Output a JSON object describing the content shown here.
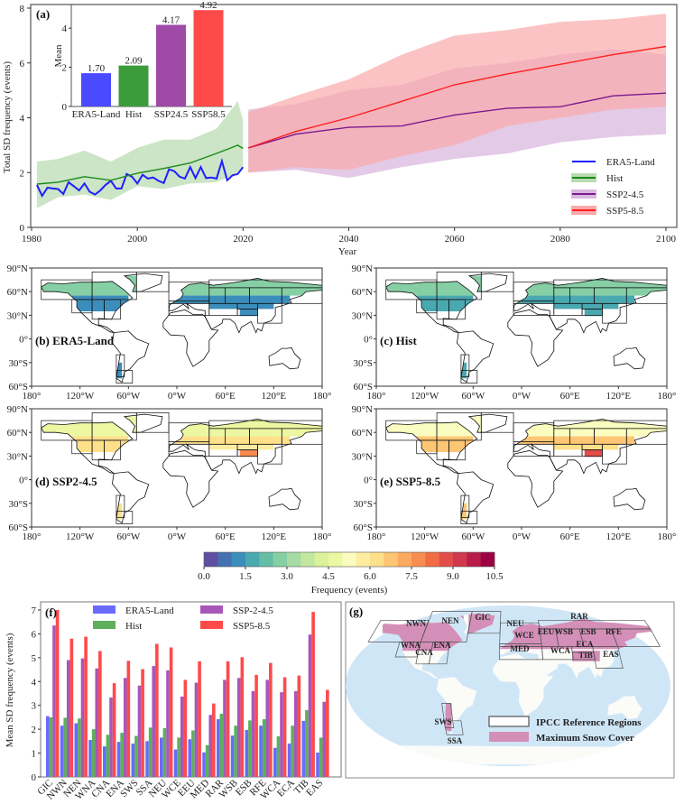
{
  "chart_data": [
    {
      "panel": "(a)",
      "type": "line",
      "xlabel": "Year",
      "ylabel": "Total SD frequency (events)",
      "xlim": [
        1980,
        2100
      ],
      "ylim": [
        0,
        8
      ],
      "xticks": [
        1980,
        2000,
        2020,
        2040,
        2060,
        2080,
        2100
      ],
      "yticks": [
        0,
        2,
        4,
        6,
        8
      ],
      "grid": false,
      "legend_position": "lower-right",
      "series": [
        {
          "name": "ERA5-Land",
          "color": "#1f1fff",
          "x": [
            1981,
            1982,
            1983,
            1984,
            1985,
            1986,
            1987,
            1988,
            1989,
            1990,
            1991,
            1992,
            1993,
            1994,
            1995,
            1996,
            1997,
            1998,
            1999,
            2000,
            2001,
            2002,
            2003,
            2004,
            2005,
            2006,
            2007,
            2008,
            2009,
            2010,
            2011,
            2012,
            2013,
            2014,
            2015,
            2016,
            2017,
            2018,
            2019,
            2020
          ],
          "y": [
            1.55,
            1.15,
            1.45,
            1.42,
            1.4,
            1.22,
            1.65,
            1.5,
            1.35,
            1.6,
            1.3,
            1.2,
            1.35,
            1.55,
            1.7,
            1.42,
            1.42,
            1.95,
            1.85,
            1.6,
            1.92,
            1.78,
            1.82,
            1.7,
            1.62,
            2.12,
            2.05,
            1.85,
            1.78,
            2.2,
            1.8,
            2.2,
            1.8,
            1.82,
            1.78,
            2.42,
            1.72,
            1.9,
            1.95,
            2.2
          ]
        },
        {
          "name": "Hist",
          "color": "#1a8a1a",
          "band_color": "#b9dcb3",
          "x": [
            1981,
            1985,
            1990,
            1995,
            2000,
            2005,
            2010,
            2015,
            2019,
            2020
          ],
          "y": [
            1.58,
            1.65,
            1.85,
            1.72,
            1.98,
            2.15,
            2.35,
            2.7,
            3.0,
            2.88
          ],
          "lower": [
            0.7,
            1.1,
            1.2,
            1.0,
            1.5,
            1.4,
            1.6,
            1.65,
            2.0,
            2.1
          ],
          "upper": [
            2.4,
            2.5,
            2.8,
            2.4,
            2.9,
            3.2,
            3.2,
            3.6,
            4.6,
            3.9
          ]
        },
        {
          "name": "SSP2-4.5",
          "color": "#7b1a8e",
          "band_color": "#d9b8dd",
          "x": [
            2021,
            2030,
            2040,
            2050,
            2060,
            2070,
            2080,
            2090,
            2100
          ],
          "y": [
            2.9,
            3.4,
            3.65,
            3.7,
            4.1,
            4.35,
            4.4,
            4.8,
            4.9
          ],
          "lower": [
            2.0,
            2.1,
            1.8,
            2.2,
            2.5,
            2.7,
            3.1,
            3.3,
            3.4
          ],
          "upper": [
            4.3,
            4.5,
            5.0,
            5.2,
            5.8,
            6.0,
            6.3,
            6.5,
            6.3
          ]
        },
        {
          "name": "SSP5-8.5",
          "color": "#ff2020",
          "band_color": "#f9a9a9",
          "x": [
            2021,
            2030,
            2040,
            2050,
            2060,
            2070,
            2080,
            2090,
            2100
          ],
          "y": [
            2.9,
            3.5,
            4.0,
            4.6,
            5.2,
            5.6,
            5.95,
            6.3,
            6.6
          ],
          "lower": [
            2.0,
            2.2,
            2.1,
            2.6,
            3.0,
            3.7,
            4.0,
            4.3,
            4.4
          ],
          "upper": [
            4.2,
            4.8,
            5.4,
            6.3,
            7.0,
            7.2,
            7.5,
            7.6,
            7.8
          ]
        }
      ],
      "inset": {
        "type": "bar",
        "ylabel": "Mean",
        "yticks": [
          0,
          2,
          4
        ],
        "categories": [
          "ERA5-Land",
          "Hist",
          "SSP24.5",
          "SSP58.5"
        ],
        "values": [
          1.7,
          2.09,
          4.17,
          4.92
        ],
        "value_labels": [
          "1.70",
          "2.09",
          "4.17",
          "4.92"
        ],
        "colors": [
          "#4a4aff",
          "#3c9c3c",
          "#a04aa8",
          "#ff4a4a"
        ]
      }
    },
    {
      "panel": "(f)",
      "type": "bar",
      "ylabel": "Mean SD frequency (events)",
      "ylim": [
        0,
        7.3
      ],
      "yticks": [
        0,
        1,
        2,
        3,
        4,
        5,
        6,
        7
      ],
      "legend_position": "top",
      "categories": [
        "GIC",
        "NWN",
        "NEN",
        "WNA",
        "CNA",
        "ENA",
        "SWS",
        "SSA",
        "NEU",
        "WCE",
        "EEU",
        "MED",
        "RAR",
        "WSB",
        "ESB",
        "RFE",
        "WCA",
        "ECA",
        "TIB",
        "EAS"
      ],
      "series": [
        {
          "name": "ERA5-Land",
          "color": "#6a6aff",
          "values": [
            2.55,
            2.15,
            2.25,
            1.55,
            1.28,
            1.47,
            1.4,
            1.5,
            1.65,
            1.15,
            1.58,
            1.03,
            2.42,
            1.73,
            1.97,
            2.15,
            1.22,
            1.4,
            2.35,
            1.02
          ]
        },
        {
          "name": "Hist",
          "color": "#5cb05c",
          "values": [
            2.5,
            2.48,
            2.45,
            2.0,
            1.77,
            1.85,
            1.72,
            2.07,
            2.05,
            1.65,
            1.95,
            1.33,
            2.65,
            2.15,
            2.37,
            2.42,
            1.7,
            2.15,
            2.8,
            1.65
          ]
        },
        {
          "name": "SSP-2-4.5",
          "color": "#a857b8",
          "values": [
            6.35,
            4.9,
            4.97,
            4.55,
            3.33,
            4.15,
            3.83,
            4.65,
            4.47,
            3.37,
            3.95,
            2.6,
            4.07,
            4.15,
            3.6,
            4.07,
            3.55,
            3.6,
            5.97,
            3.15
          ]
        },
        {
          "name": "SSP5-8.5",
          "color": "#ff4a4a",
          "values": [
            7.0,
            5.8,
            5.88,
            5.28,
            3.93,
            4.87,
            4.52,
            5.58,
            5.43,
            4.07,
            4.85,
            3.08,
            4.85,
            5.02,
            4.28,
            4.78,
            4.18,
            4.25,
            6.92,
            3.65
          ]
        }
      ]
    }
  ],
  "maps": {
    "lat_ticks": [
      "90°N",
      "60°N",
      "30°N",
      "0°",
      "30°S",
      "60°S"
    ],
    "lon_ticks": [
      "180°",
      "120°W",
      "60°W",
      "0°W",
      "60°E",
      "120°E",
      "180°"
    ],
    "panels": [
      {
        "label": "(b) ERA5-Land",
        "approx_frequency": {
          "high_lat": 2.6,
          "mid_lat": 1.4,
          "tibet": 1.0
        }
      },
      {
        "label": "(c) Hist",
        "approx_frequency": {
          "high_lat": 2.9,
          "mid_lat": 1.8,
          "tibet": 1.6
        }
      },
      {
        "label": "(d) SSP2-4.5",
        "approx_frequency": {
          "high_lat": 4.8,
          "mid_lat": 6.3,
          "tibet": 7.8
        }
      },
      {
        "label": "(e) SSP5-8.5",
        "approx_frequency": {
          "high_lat": 5.2,
          "mid_lat": 6.8,
          "tibet": 8.6
        }
      }
    ],
    "colorbar": {
      "label": "Frequency (events)",
      "ticks": [
        "0.0",
        "1.5",
        "3.0",
        "4.5",
        "6.0",
        "7.5",
        "9.0",
        "10.5"
      ],
      "range": [
        0,
        10.5
      ],
      "colors": [
        "#5e4fa2",
        "#4470b1",
        "#3b8dbc",
        "#4aa8b0",
        "#64bda4",
        "#86cfa5",
        "#a5dba4",
        "#c4e79e",
        "#dbf19a",
        "#ecf7a2",
        "#fbfcbf",
        "#feeda1",
        "#fee08b",
        "#fdc675",
        "#fcaa5f",
        "#f88d51",
        "#f06c44",
        "#e24d49",
        "#cf384d",
        "#b91c48",
        "#9e0142"
      ]
    }
  },
  "region_map": {
    "label": "(g)",
    "regions": [
      "NWN",
      "NEN",
      "GIC",
      "WNA",
      "CNA",
      "ENA",
      "NEU",
      "WCE",
      "EEU",
      "WSB",
      "ESB",
      "RFE",
      "RAR",
      "MED",
      "WCA",
      "ECA",
      "TIB",
      "EAS",
      "SWS",
      "SSA"
    ],
    "legend": [
      {
        "label": "IPCC Reference Regions",
        "style": "outline"
      },
      {
        "label": "Maximum Snow Cover",
        "color": "#d48fb8"
      }
    ],
    "ocean_color": "#cfe6f7"
  }
}
